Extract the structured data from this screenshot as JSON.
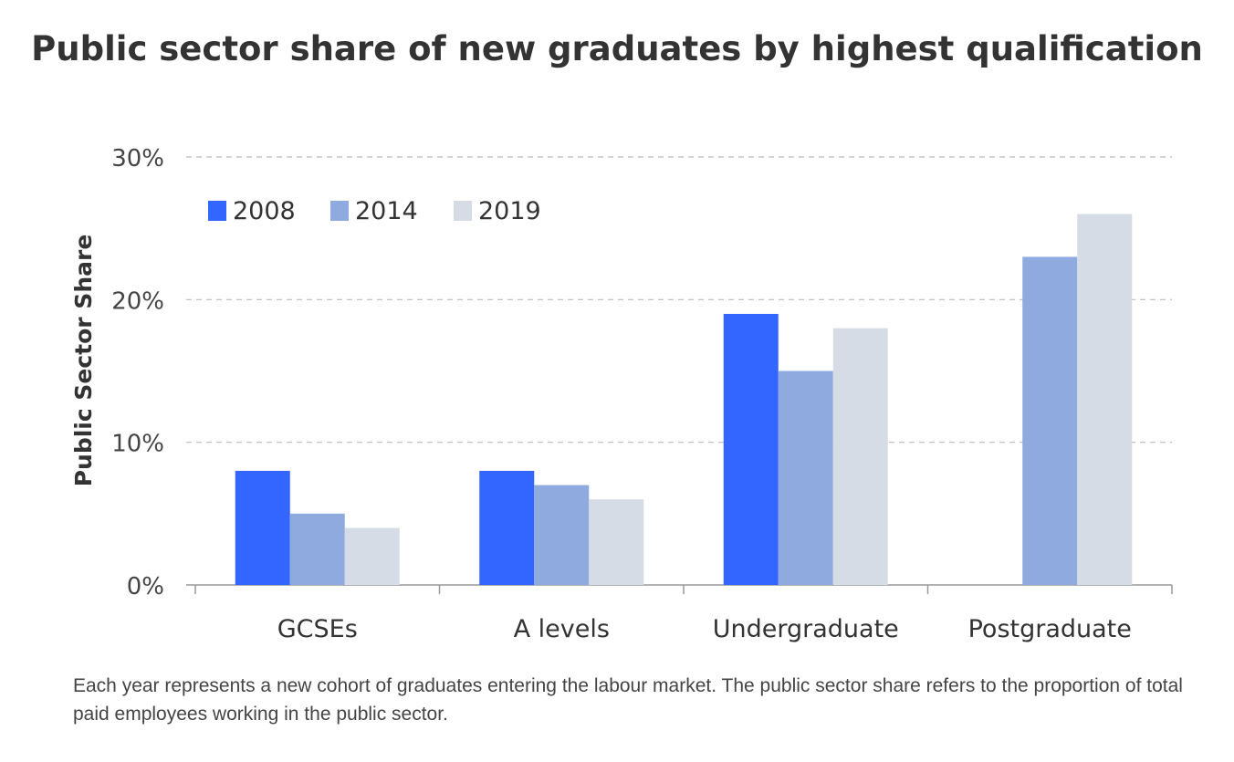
{
  "chart_data": {
    "type": "bar",
    "title": "Public sector share of new graduates by highest qualification",
    "ylabel": "Public Sector Share",
    "xlabel": "",
    "categories": [
      "GCSEs",
      "A levels",
      "Undergraduate",
      "Postgraduate"
    ],
    "series": [
      {
        "name": "2008",
        "color": "#3366ff",
        "values": [
          8,
          8,
          19,
          null
        ]
      },
      {
        "name": "2014",
        "color": "#8eaadf",
        "values": [
          5,
          7,
          15,
          23
        ]
      },
      {
        "name": "2019",
        "color": "#d6dce6",
        "values": [
          4,
          6,
          18,
          26
        ]
      }
    ],
    "ylim": [
      0,
      30
    ],
    "yticks": [
      0,
      10,
      20,
      30
    ],
    "ytick_labels": [
      "0%",
      "10%",
      "20%",
      "30%"
    ],
    "grid": true,
    "legend_position": "top-left"
  },
  "footnote": "Each year represents a new cohort of graduates entering the labour market. The public sector share refers to the proportion of total paid employees working in the public sector."
}
